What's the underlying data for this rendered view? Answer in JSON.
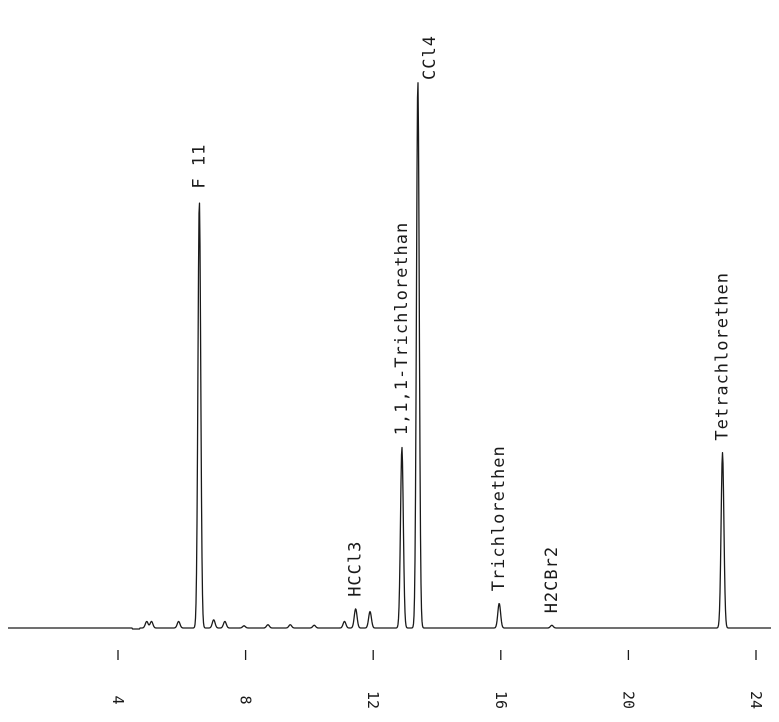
{
  "chart_data": {
    "type": "line",
    "title": "",
    "xlabel": "",
    "ylabel": "",
    "x_ticks": [
      "4",
      "8",
      "12",
      "16",
      "20",
      "24"
    ],
    "x_tick_values": [
      4,
      8,
      12,
      16,
      20,
      24
    ],
    "xlim": [
      4.0,
      24.0
    ],
    "ylim": [
      0,
      1.0
    ],
    "grid": false,
    "legend": "none",
    "line_color": "#1a1a1a",
    "peaks": [
      {
        "name": "F 11",
        "x": 6.55,
        "height": 0.78,
        "labelled": true
      },
      {
        "name": "HCCl3",
        "x": 11.45,
        "height": 0.035,
        "labelled": true
      },
      {
        "name": "1,1,1-Trichlorethan",
        "x": 12.9,
        "height": 0.33,
        "labelled": true
      },
      {
        "name": "CCl4",
        "x": 13.4,
        "height": 1.0,
        "labelled": true
      },
      {
        "name": "Trichlorethen",
        "x": 15.95,
        "height": 0.045,
        "labelled": true
      },
      {
        "name": "H2CBr2",
        "x": 17.6,
        "height": 0.005,
        "labelled": true
      },
      {
        "name": "Tetrachlorethen",
        "x": 22.95,
        "height": 0.32,
        "labelled": true
      },
      {
        "name": "",
        "x": 4.9,
        "height": 0.012,
        "labelled": false
      },
      {
        "name": "",
        "x": 5.05,
        "height": 0.012,
        "labelled": false
      },
      {
        "name": "",
        "x": 5.9,
        "height": 0.012,
        "labelled": false
      },
      {
        "name": "",
        "x": 7.0,
        "height": 0.015,
        "labelled": false
      },
      {
        "name": "",
        "x": 7.35,
        "height": 0.012,
        "labelled": false
      },
      {
        "name": "",
        "x": 7.95,
        "height": 0.004,
        "labelled": false
      },
      {
        "name": "",
        "x": 8.7,
        "height": 0.006,
        "labelled": false
      },
      {
        "name": "",
        "x": 9.4,
        "height": 0.006,
        "labelled": false
      },
      {
        "name": "",
        "x": 10.15,
        "height": 0.005,
        "labelled": false
      },
      {
        "name": "",
        "x": 11.1,
        "height": 0.012,
        "labelled": false
      },
      {
        "name": "",
        "x": 11.9,
        "height": 0.03,
        "labelled": false
      }
    ]
  }
}
